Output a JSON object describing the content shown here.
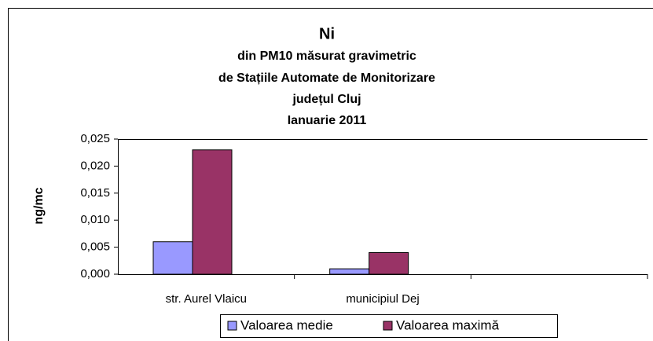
{
  "chart_data": {
    "type": "bar",
    "title": "Ni",
    "subtitle": [
      "din PM10 măsurat gravimetric",
      "de Stațiile Automate de Monitorizare",
      "județul Cluj",
      "Ianuarie 2011"
    ],
    "y_label": "ng/mc",
    "categories": [
      "str. Aurel Vlaicu",
      "municipiul Dej",
      null
    ],
    "series": [
      {
        "name": "Valoarea medie",
        "color": "#9999ff",
        "values": [
          0.006,
          0.001,
          null
        ]
      },
      {
        "name": "Valoarea maximă",
        "color": "#993366",
        "values": [
          0.023,
          0.004,
          null
        ]
      }
    ],
    "ylim": [
      0,
      0.025
    ],
    "yticks": [
      {
        "value": 0,
        "label": "0,000"
      },
      {
        "value": 0.005,
        "label": "0,005"
      },
      {
        "value": 0.01,
        "label": "0,010"
      },
      {
        "value": 0.015,
        "label": "0,015"
      },
      {
        "value": 0.02,
        "label": "0,020"
      },
      {
        "value": 0.025,
        "label": "0,025"
      }
    ],
    "legend": "bottom"
  }
}
